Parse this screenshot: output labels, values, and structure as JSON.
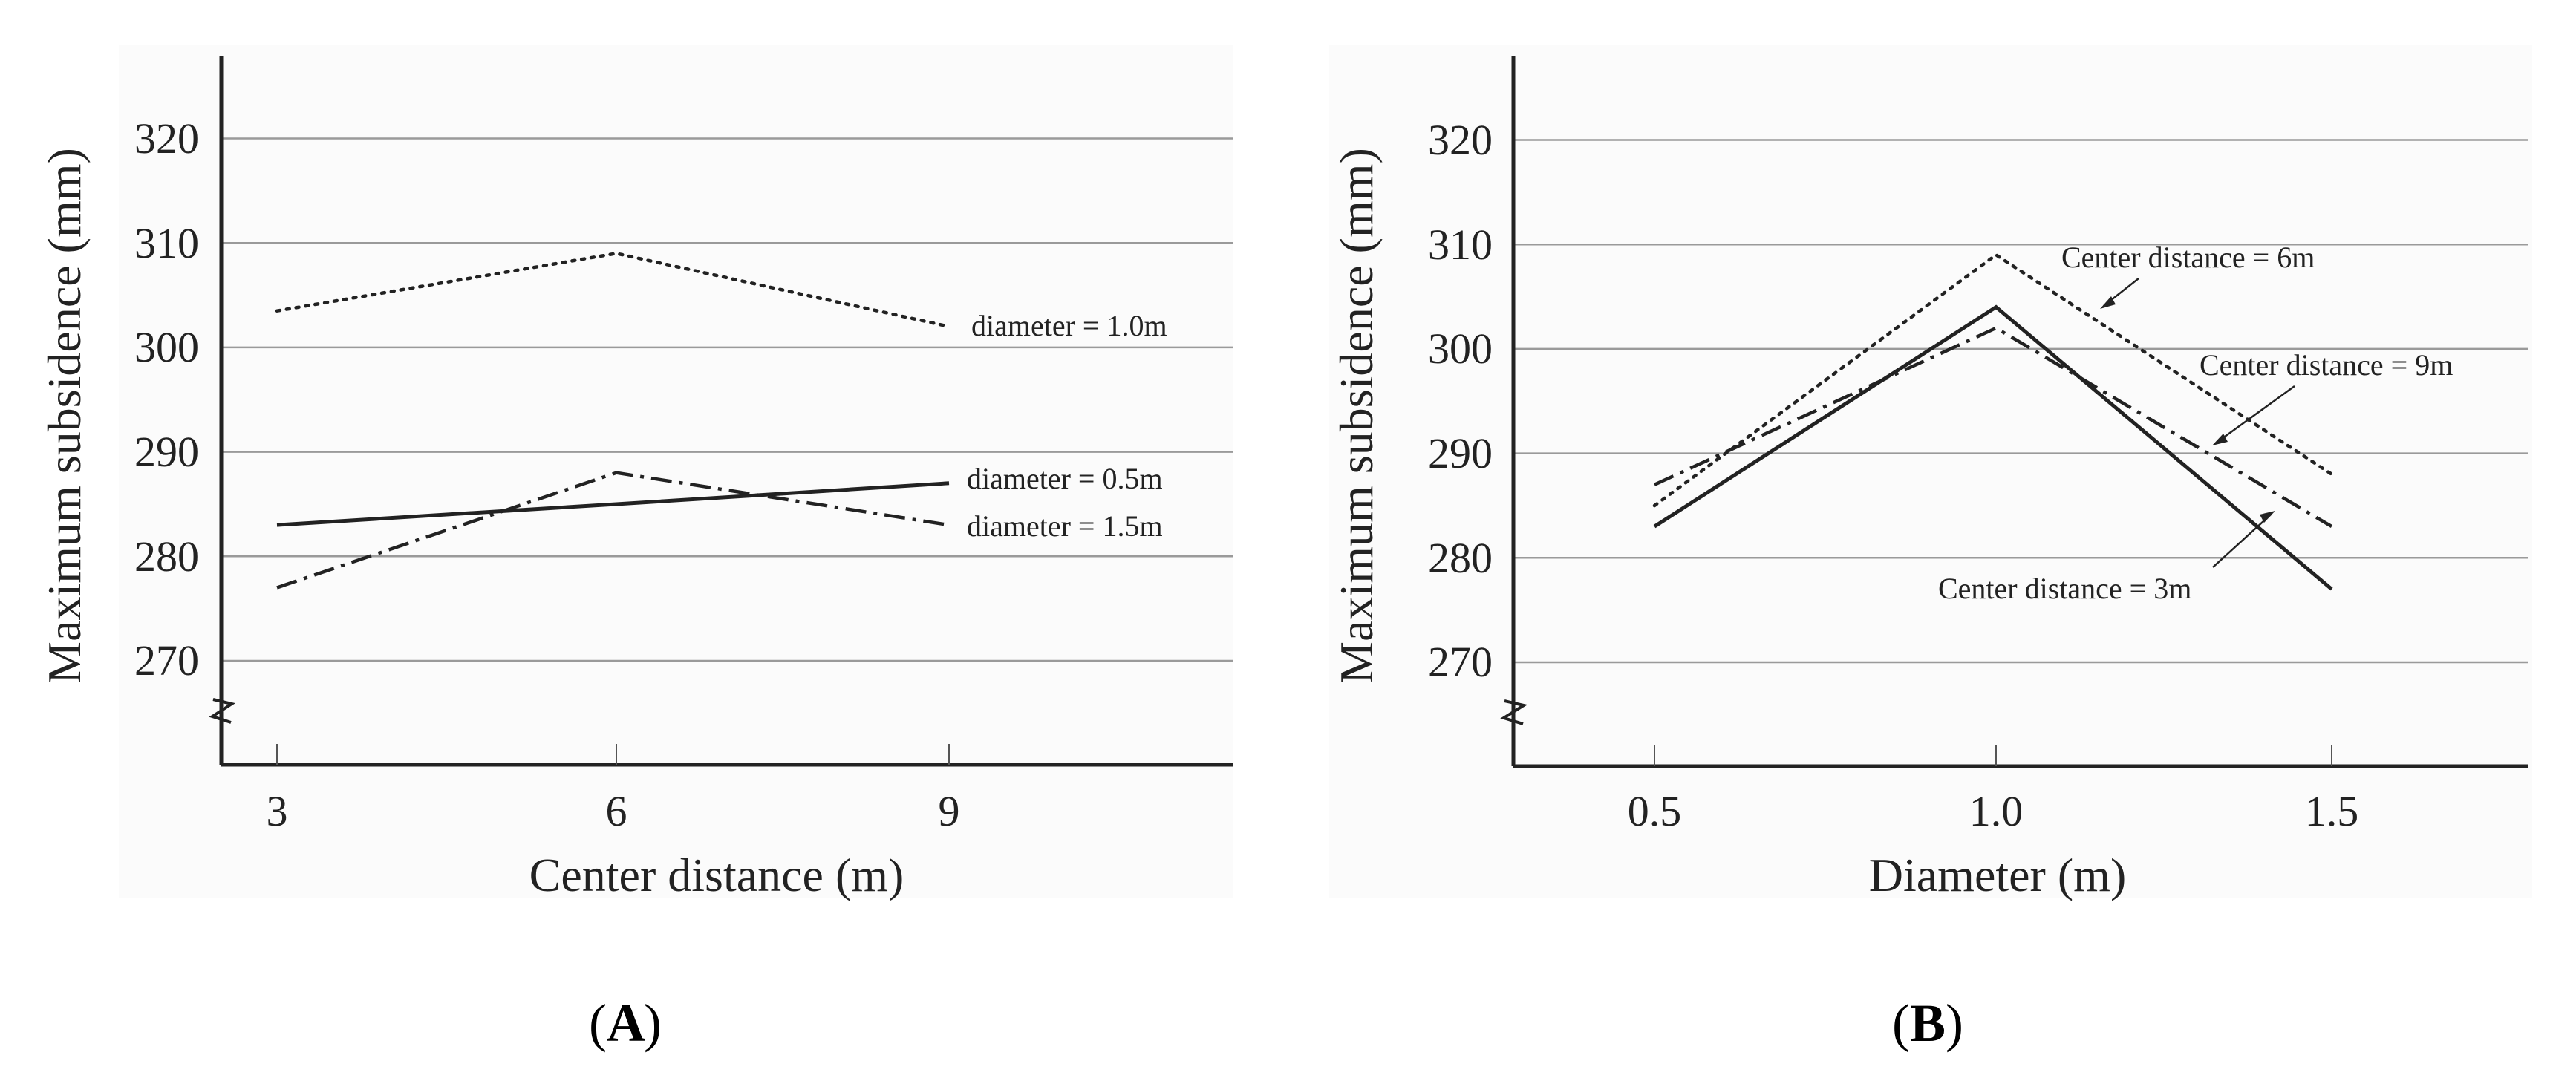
{
  "chart_data": [
    {
      "panel": "A",
      "type": "line",
      "xlabel": "Center distance (m)",
      "ylabel": "Maximum subsidence (mm)",
      "x_categories": [
        "3",
        "6",
        "9"
      ],
      "y_ticks": [
        "270",
        "280",
        "290",
        "300",
        "310",
        "320"
      ],
      "ylim": [
        260,
        328
      ],
      "grid": "horizontal",
      "axis_break": true,
      "series": [
        {
          "name": "diameter = 1.0m",
          "style": "dotted",
          "values": [
            303.5,
            309,
            302
          ]
        },
        {
          "name": "diameter = 0.5m",
          "style": "solid",
          "values": [
            283,
            285,
            287
          ]
        },
        {
          "name": "diameter = 1.5m",
          "style": "dashdot",
          "values": [
            277,
            288,
            283
          ]
        }
      ]
    },
    {
      "panel": "B",
      "type": "line",
      "xlabel": "Diameter (m)",
      "ylabel": "Maximum subsidence (mm)",
      "x_categories": [
        "0.5",
        "1.0",
        "1.5"
      ],
      "y_ticks": [
        "270",
        "280",
        "290",
        "300",
        "310",
        "320"
      ],
      "ylim": [
        260,
        328
      ],
      "grid": "horizontal",
      "axis_break": true,
      "series": [
        {
          "name": "Center distance = 6m",
          "style": "dotted",
          "values": [
            285,
            309,
            288
          ]
        },
        {
          "name": "Center distance = 9m",
          "style": "dashdot",
          "values": [
            287,
            302,
            283
          ]
        },
        {
          "name": "Center distance = 3m",
          "style": "solid",
          "values": [
            283,
            304,
            277
          ]
        }
      ]
    }
  ]
}
